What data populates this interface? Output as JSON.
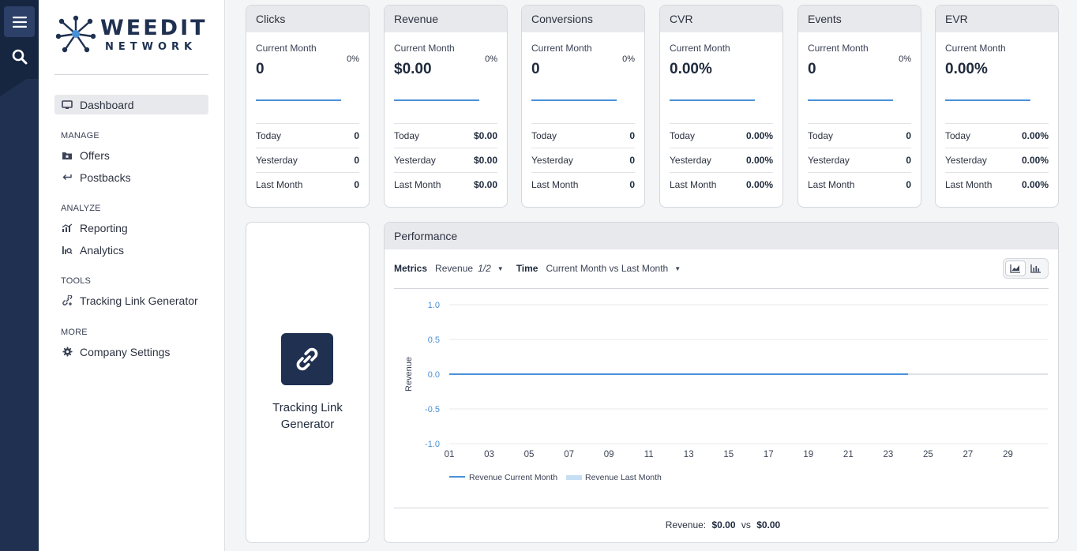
{
  "brand": {
    "name_line1": "WEEDIT",
    "name_line2": "NETWORK"
  },
  "rail": {
    "menu_icon": "hamburger-icon",
    "search_icon": "search-icon"
  },
  "nav": {
    "dashboard": "Dashboard",
    "sections": {
      "manage": "MANAGE",
      "analyze": "ANALYZE",
      "tools": "TOOLS",
      "more": "MORE"
    },
    "offers": "Offers",
    "postbacks": "Postbacks",
    "reporting": "Reporting",
    "analytics": "Analytics",
    "tracking_link_generator": "Tracking Link Generator",
    "company_settings": "Company Settings"
  },
  "cards": [
    {
      "title": "Clicks",
      "current_label": "Current Month",
      "current": "0",
      "pct": "0%",
      "today_label": "Today",
      "today": "0",
      "yesterday_label": "Yesterday",
      "yesterday": "0",
      "last_label": "Last Month",
      "last": "0"
    },
    {
      "title": "Revenue",
      "current_label": "Current Month",
      "current": "$0.00",
      "pct": "0%",
      "today_label": "Today",
      "today": "$0.00",
      "yesterday_label": "Yesterday",
      "yesterday": "$0.00",
      "last_label": "Last Month",
      "last": "$0.00"
    },
    {
      "title": "Conversions",
      "current_label": "Current Month",
      "current": "0",
      "pct": "0%",
      "today_label": "Today",
      "today": "0",
      "yesterday_label": "Yesterday",
      "yesterday": "0",
      "last_label": "Last Month",
      "last": "0"
    },
    {
      "title": "CVR",
      "current_label": "Current Month",
      "current": "0.00%",
      "pct": "",
      "today_label": "Today",
      "today": "0.00%",
      "yesterday_label": "Yesterday",
      "yesterday": "0.00%",
      "last_label": "Last Month",
      "last": "0.00%"
    },
    {
      "title": "Events",
      "current_label": "Current Month",
      "current": "0",
      "pct": "0%",
      "today_label": "Today",
      "today": "0",
      "yesterday_label": "Yesterday",
      "yesterday": "0",
      "last_label": "Last Month",
      "last": "0"
    },
    {
      "title": "EVR",
      "current_label": "Current Month",
      "current": "0.00%",
      "pct": "",
      "today_label": "Today",
      "today": "0.00%",
      "yesterday_label": "Yesterday",
      "yesterday": "0.00%",
      "last_label": "Last Month",
      "last": "0.00%"
    }
  ],
  "tracking_card": {
    "line1": "Tracking Link",
    "line2": "Generator",
    "icon": "link-icon"
  },
  "performance": {
    "title": "Performance",
    "metrics_label": "Metrics",
    "metrics_value": "Revenue",
    "metrics_count": "1/2",
    "time_label": "Time",
    "time_value": "Current Month vs Last Month",
    "summary_label": "Revenue:",
    "summary_current": "$0.00",
    "summary_vs": "vs",
    "summary_last": "$0.00",
    "colors": {
      "current": "#4a90d9",
      "last": "#c6def4",
      "tick": "#4a90d9"
    }
  },
  "chart_data": {
    "type": "line",
    "ylabel": "Revenue",
    "xlabel": "",
    "ylim": [
      -1.0,
      1.0
    ],
    "yticks": [
      "1.0",
      "0.5",
      "0.0",
      "-0.5",
      "-1.0"
    ],
    "ytick_values": [
      1.0,
      0.5,
      0.0,
      -0.5,
      -1.0
    ],
    "xticks": [
      "01",
      "03",
      "05",
      "07",
      "09",
      "11",
      "13",
      "15",
      "17",
      "19",
      "21",
      "23",
      "25",
      "27",
      "29"
    ],
    "x_range": [
      1,
      31
    ],
    "grid": true,
    "legend_position": "bottom-left",
    "series": [
      {
        "name": "Revenue Current Month",
        "x": [
          1,
          24
        ],
        "values": [
          0,
          0
        ]
      },
      {
        "name": "Revenue Last Month",
        "x": [],
        "values": []
      }
    ]
  }
}
